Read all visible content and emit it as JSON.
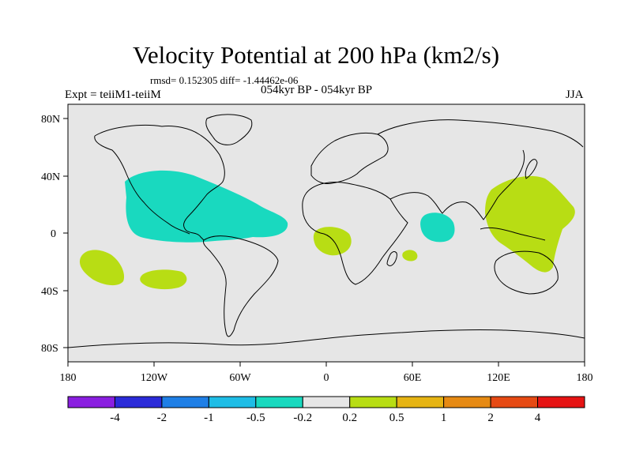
{
  "title": "Velocity Potential at 200 hPa (km2/s)",
  "stats": "rmsd= 0.152305  diff= -1.44462e-06",
  "left_label": "Expt = teiiM1-teiiM",
  "center_label": "054kyr BP - 054kyr BP",
  "right_label": "JJA",
  "lat_labels": [
    "80N",
    "40N",
    "0",
    "40S",
    "80S"
  ],
  "lon_labels": [
    "180",
    "120W",
    "60W",
    "0",
    "60E",
    "120E",
    "180"
  ],
  "colors": {
    "background_map": "#e6e6e6",
    "coast": "#000000",
    "neg_small": "#19d9bf",
    "pos_small": "#b8dd14"
  },
  "colorbar": {
    "colors": [
      "#8a1fe0",
      "#2b2bd9",
      "#1f7fe6",
      "#1fbde6",
      "#19d9bf",
      "#e6e6e6",
      "#b8dd14",
      "#e6b414",
      "#e68a14",
      "#e64a14",
      "#e61414"
    ],
    "labels": [
      "-4",
      "-2",
      "-1",
      "-0.5",
      "-0.2",
      "0.2",
      "0.5",
      "1",
      "2",
      "4"
    ]
  }
}
